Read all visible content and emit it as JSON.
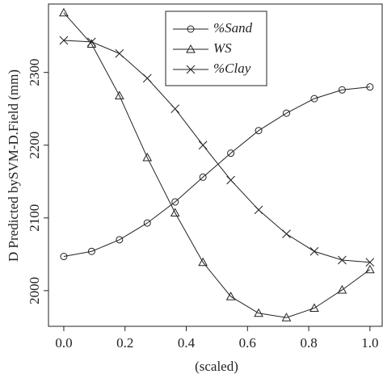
{
  "chart_data": {
    "type": "line",
    "x_label": "(scaled)",
    "y_label": "D Predicted bySVM-D.Field (mm)",
    "x": [
      0,
      0.0909,
      0.1818,
      0.2727,
      0.3636,
      0.4545,
      0.5455,
      0.6364,
      0.7273,
      0.8182,
      0.9091,
      1
    ],
    "series": [
      {
        "name": "%Sand",
        "color": "#222222",
        "marker": "circle",
        "values": [
          2047,
          2054,
          2070,
          2093,
          2122,
          2156,
          2189,
          2220,
          2244,
          2264,
          2276,
          2280
        ]
      },
      {
        "name": "WS",
        "color": "#222222",
        "marker": "triangle",
        "values": [
          2382,
          2339,
          2268,
          2183,
          2107,
          2039,
          1992,
          1969,
          1963,
          1976,
          2001,
          2029
        ]
      },
      {
        "name": "%Clay",
        "color": "#222222",
        "marker": "x",
        "values": [
          2344,
          2342,
          2326,
          2292,
          2250,
          2200,
          2152,
          2111,
          2078,
          2054,
          2042,
          2039
        ]
      }
    ],
    "xlim": [
      -0.05,
      1.04
    ],
    "ylim": [
      1951,
      2394
    ],
    "xticks": [
      {
        "value": 0,
        "label": "0.0"
      },
      0.2,
      0.4,
      0.6,
      0.8,
      {
        "value": 1,
        "label": "1.0"
      }
    ],
    "yticks": [
      2000,
      2100,
      2200,
      2300
    ],
    "legend": "top"
  }
}
